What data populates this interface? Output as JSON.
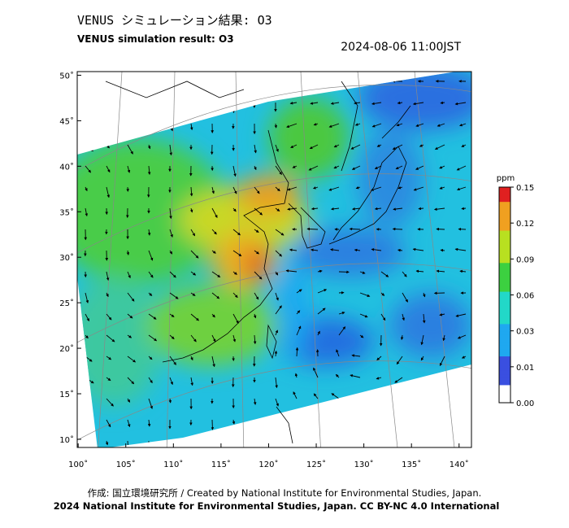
{
  "header": {
    "title": "VENUS シミュレーション結果: O3",
    "subtitle": "VENUS simulation result: O3",
    "timestamp": "2024-08-06 11:00JST"
  },
  "map": {
    "xlim": [
      99.9,
      141.3
    ],
    "ylim": [
      9.1,
      50.4
    ],
    "xticks": [
      {
        "value": 100,
        "label": "100˚"
      },
      {
        "value": 105,
        "label": "105˚"
      },
      {
        "value": 110,
        "label": "110˚"
      },
      {
        "value": 115,
        "label": "115˚"
      },
      {
        "value": 120,
        "label": "120˚"
      },
      {
        "value": 125,
        "label": "125˚"
      },
      {
        "value": 130,
        "label": "130˚"
      },
      {
        "value": 135,
        "label": "135˚"
      },
      {
        "value": 140,
        "label": "140˚"
      }
    ],
    "yticks": [
      {
        "value": 10,
        "label": "10˚"
      },
      {
        "value": 15,
        "label": "15˚"
      },
      {
        "value": 20,
        "label": "20˚"
      },
      {
        "value": 25,
        "label": "25˚"
      },
      {
        "value": 30,
        "label": "30˚"
      },
      {
        "value": 35,
        "label": "35˚"
      },
      {
        "value": 40,
        "label": "40˚"
      },
      {
        "value": 45,
        "label": "45˚"
      },
      {
        "value": 50,
        "label": "50˚"
      }
    ]
  },
  "colorbar": {
    "label": "ppm",
    "ticks": [
      {
        "value": 0,
        "label": "0.00"
      },
      {
        "value": 0.01,
        "label": "0.01"
      },
      {
        "value": 0.03,
        "label": "0.03"
      },
      {
        "value": 0.06,
        "label": "0.06"
      },
      {
        "value": 0.09,
        "label": "0.09"
      },
      {
        "value": 0.12,
        "label": "0.12"
      },
      {
        "value": 0.15,
        "label": "0.15"
      }
    ],
    "colors": [
      "#ffffff",
      "#3a4fe0",
      "#1fa8f0",
      "#22d8c8",
      "#3cd040",
      "#b8e020",
      "#f0a020",
      "#e02020"
    ]
  },
  "footer": {
    "credit": "作成: 国立環境研究所 / Created by National Institute for Environmental Studies, Japan.",
    "license": "2024 National Institute for Environmental Studies, Japan. CC BY-NC 4.0 International"
  }
}
